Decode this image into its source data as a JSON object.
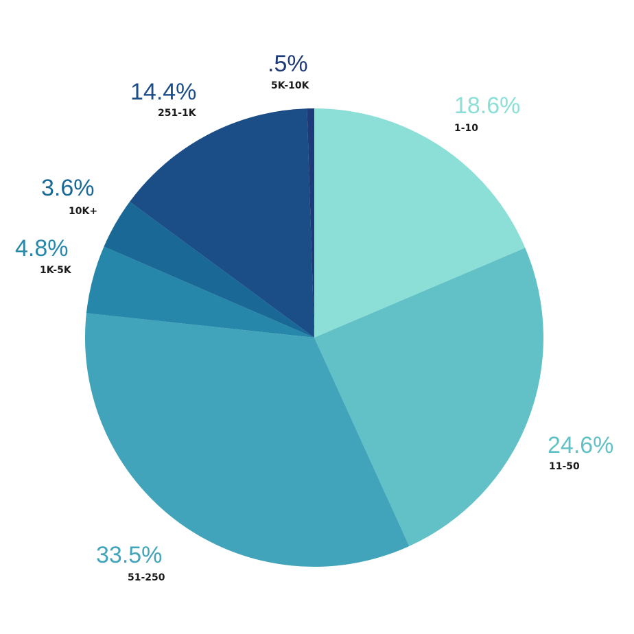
{
  "chart_data": {
    "type": "pie",
    "title": "",
    "slices": [
      {
        "category": "1-10",
        "value": 18.6,
        "label": "18.6%",
        "color": "#8bdfd6",
        "label_color": "#8bdfd6"
      },
      {
        "category": "11-50",
        "value": 24.6,
        "label": "24.6%",
        "color": "#61c1c7",
        "label_color": "#61c1c7"
      },
      {
        "category": "51-250",
        "value": 33.5,
        "label": "33.5%",
        "color": "#41a4bb",
        "label_color": "#41a4bb"
      },
      {
        "category": "1K-5K",
        "value": 4.8,
        "label": "4.8%",
        "color": "#2687ab",
        "label_color": "#2687ab"
      },
      {
        "category": "10K+",
        "value": 3.6,
        "label": "3.6%",
        "color": "#196896",
        "label_color": "#196896"
      },
      {
        "category": "251-1K",
        "value": 14.4,
        "label": "14.4%",
        "color": "#1b4d87",
        "label_color": "#1b4d87"
      },
      {
        "category": "5K-10K",
        "value": 0.5,
        "label": ".5%",
        "color": "#1f3a78",
        "label_color": "#1f3a78"
      }
    ],
    "start_angle": "12 o'clock",
    "direction": "clockwise",
    "legend": "none"
  }
}
